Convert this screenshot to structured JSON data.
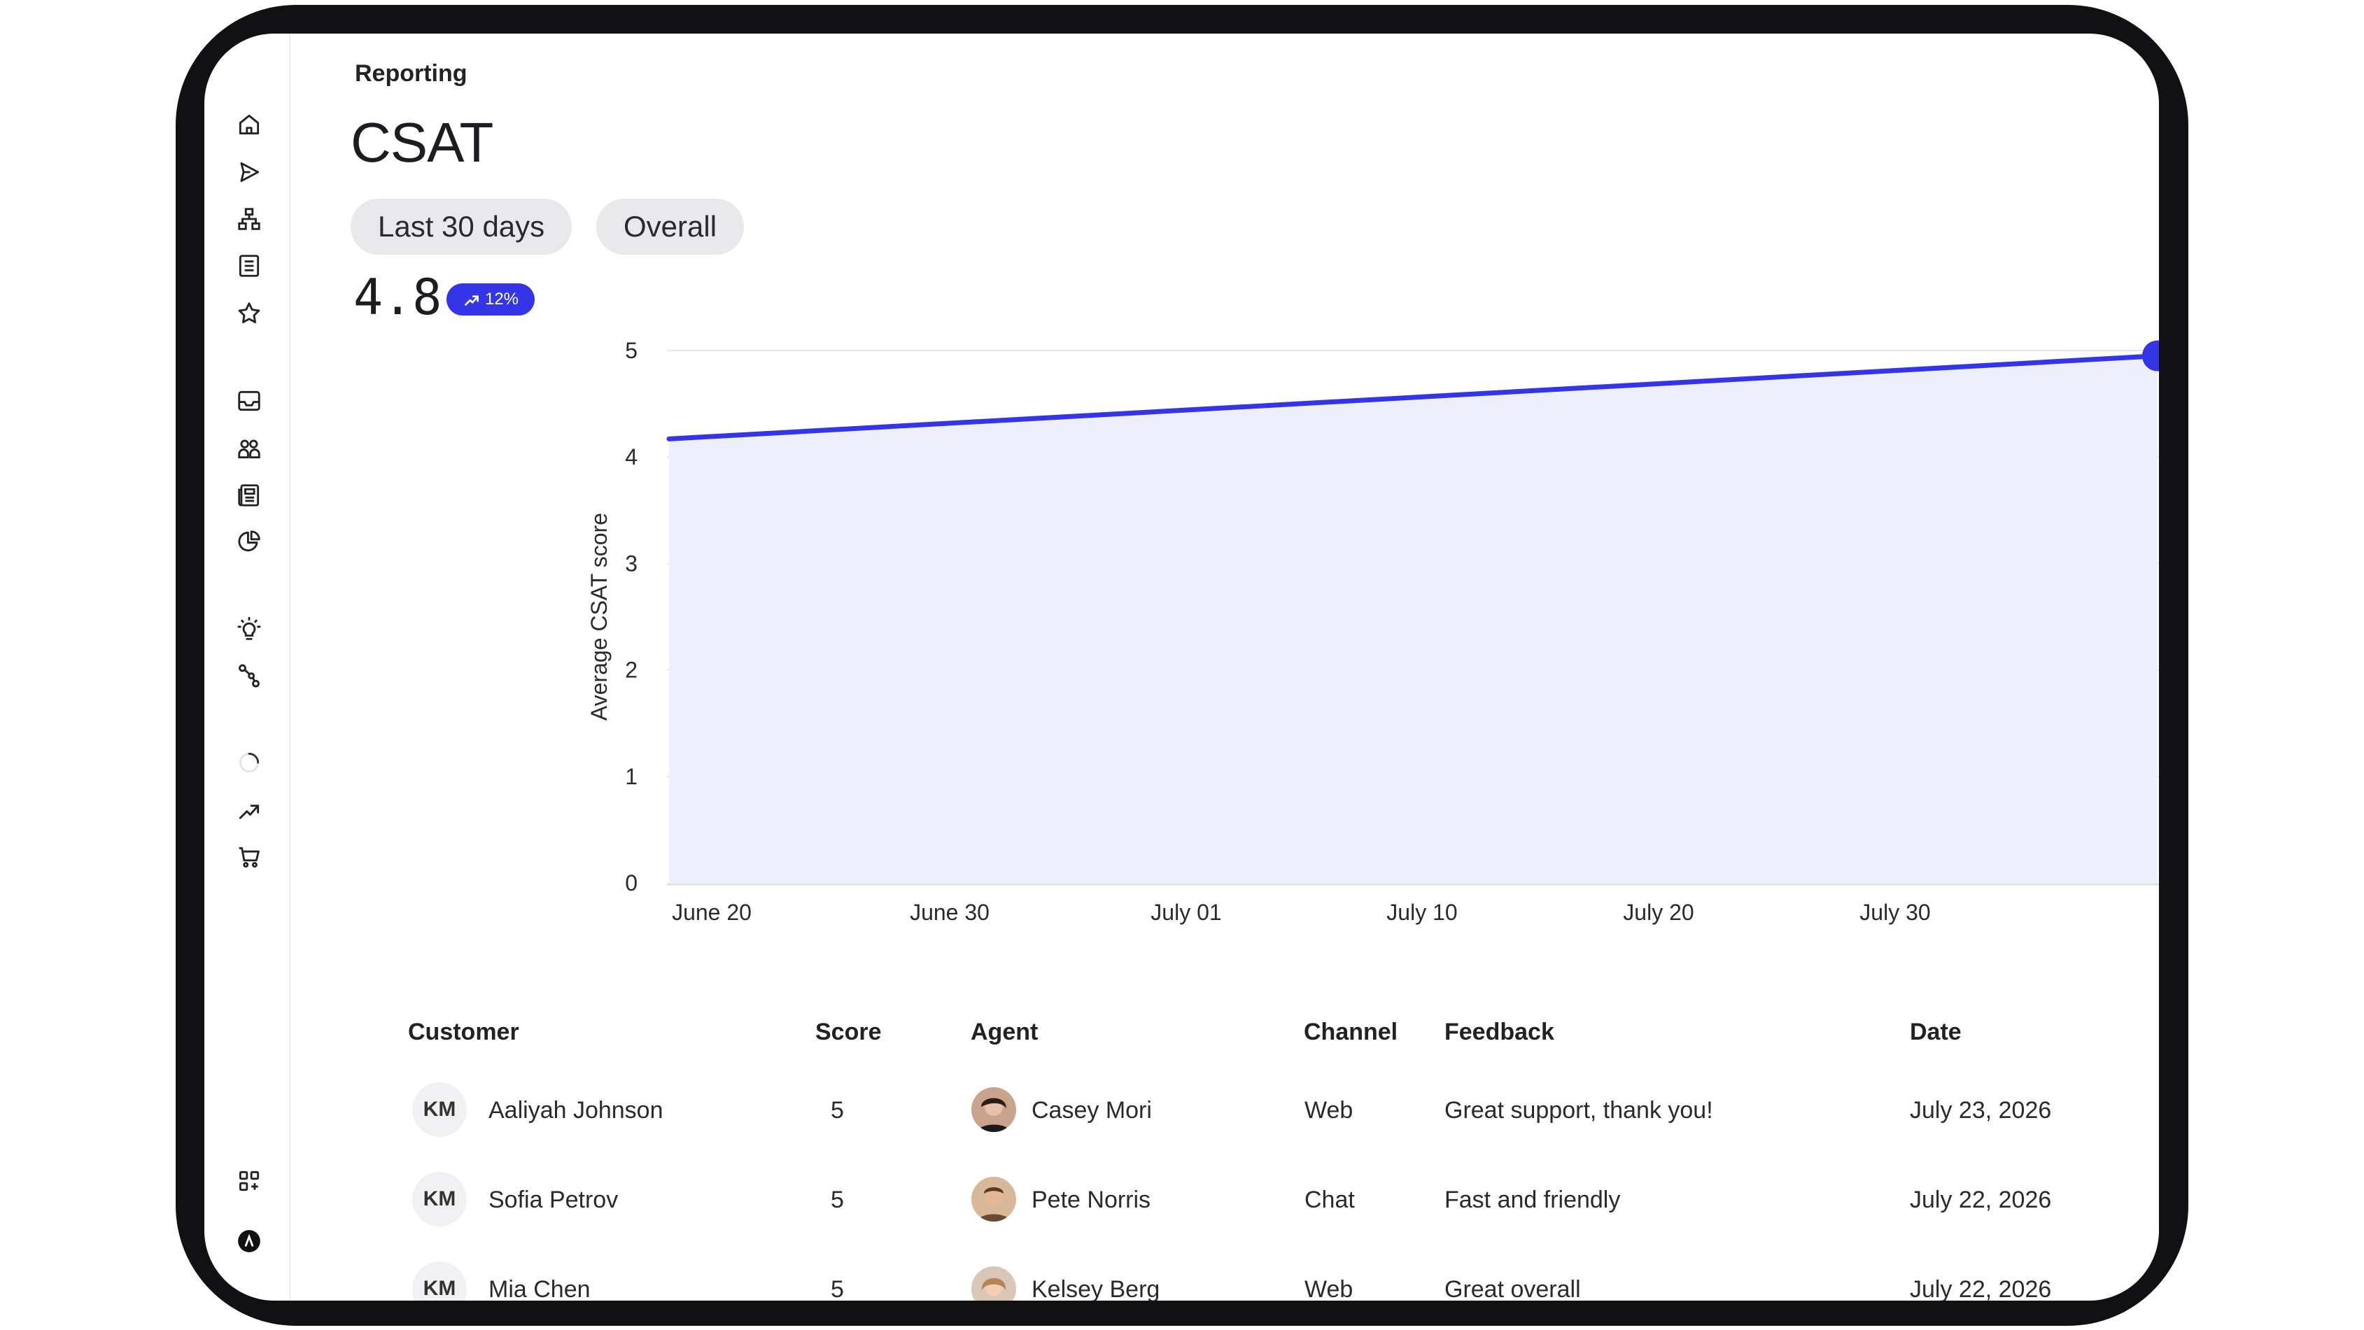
{
  "breadcrumb": "Reporting",
  "page_title": "CSAT",
  "filters": {
    "period": "Last 30 days",
    "scope": "Overall"
  },
  "metric": {
    "value": "4.8",
    "change": "12%",
    "trend_icon": "trending-up-icon"
  },
  "colors": {
    "accent": "#3535E8",
    "area_fill": "#EEEFFC",
    "grid": "#E6E6EA"
  },
  "sidebar": {
    "icons": [
      "home-icon",
      "send-icon",
      "hierarchy-icon",
      "list-icon",
      "star-icon",
      "inbox-icon",
      "users-icon",
      "newspaper-icon",
      "pie-chart-icon",
      "lightbulb-icon",
      "route-icon",
      "loading-icon",
      "trending-up-icon",
      "cart-icon",
      "apps-icon",
      "profile-icon"
    ]
  },
  "chart_data": {
    "type": "area",
    "ylabel": "Average CSAT score",
    "xlabel": "",
    "x_tick_labels": [
      "June 20",
      "June 30",
      "July 01",
      "July 10",
      "July 20",
      "July 30"
    ],
    "y_tick_labels": [
      "0",
      "1",
      "2",
      "3",
      "4",
      "5"
    ],
    "ylim": [
      0,
      5
    ],
    "grid": true,
    "series": [
      {
        "x": [
          "June 14",
          "August 5"
        ],
        "y": [
          4.17,
          4.95
        ]
      }
    ]
  },
  "table": {
    "headers": {
      "customer": "Customer",
      "score": "Score",
      "agent": "Agent",
      "channel": "Channel",
      "feedback": "Feedback",
      "date": "Date"
    },
    "rows": [
      {
        "initials": "KM",
        "customer": "Aaliyah Johnson",
        "score": "5",
        "agent": "Casey Mori",
        "channel": "Web",
        "feedback": "Great support, thank you!",
        "date": "July 23, 2026"
      },
      {
        "initials": "KM",
        "customer": "Sofia Petrov",
        "score": "5",
        "agent": "Pete Norris",
        "channel": "Chat",
        "feedback": "Fast and friendly",
        "date": "July 22, 2026"
      },
      {
        "initials": "KM",
        "customer": "Mia Chen",
        "score": "5",
        "agent": "Kelsey Berg",
        "channel": "Web",
        "feedback": "Great overall",
        "date": "July 22, 2026"
      }
    ]
  }
}
